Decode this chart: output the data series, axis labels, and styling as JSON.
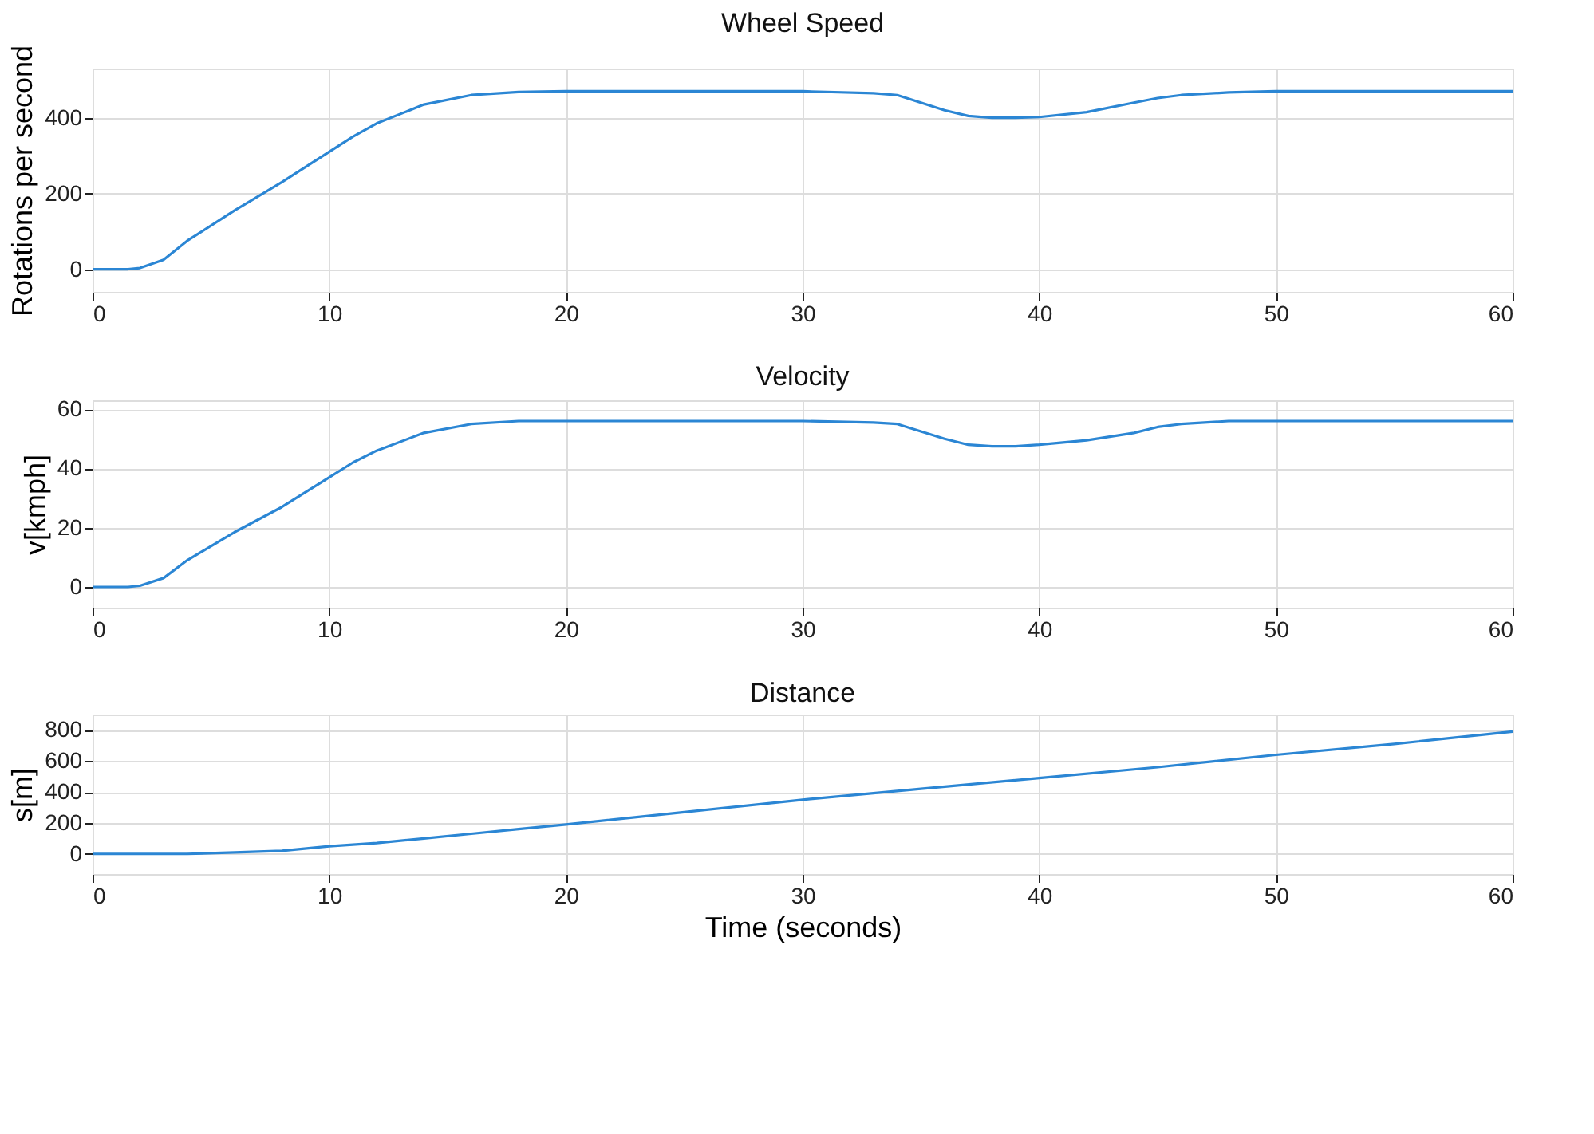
{
  "chart_data": [
    {
      "type": "line",
      "title": "Wheel Speed",
      "ylabel": "Rotations per second",
      "xlim": [
        0,
        60
      ],
      "xticks": [
        0,
        10,
        20,
        30,
        40,
        50,
        60
      ],
      "ylim": [
        -60,
        530
      ],
      "yticks": [
        0,
        200,
        400
      ],
      "grid": true,
      "series": [
        {
          "color": "#2b86d4",
          "x": [
            0,
            1.5,
            2,
            3,
            4,
            6,
            8,
            10,
            11,
            12,
            14,
            16,
            18,
            20,
            30,
            33,
            34,
            35,
            36,
            37,
            38,
            39,
            40,
            42,
            44,
            45,
            46,
            48,
            50,
            60
          ],
          "values": [
            0,
            0,
            3,
            25,
            75,
            155,
            230,
            310,
            350,
            385,
            435,
            460,
            468,
            470,
            470,
            465,
            460,
            440,
            420,
            405,
            400,
            400,
            402,
            415,
            440,
            452,
            460,
            467,
            470,
            470
          ]
        }
      ]
    },
    {
      "type": "line",
      "title": "Velocity",
      "ylabel": "v[kmph]",
      "xlim": [
        0,
        60
      ],
      "xticks": [
        0,
        10,
        20,
        30,
        40,
        50,
        60
      ],
      "ylim": [
        -7,
        63
      ],
      "yticks": [
        0,
        20,
        40,
        60
      ],
      "grid": true,
      "series": [
        {
          "color": "#2b86d4",
          "x": [
            0,
            1.5,
            2,
            3,
            4,
            6,
            8,
            10,
            11,
            12,
            14,
            16,
            18,
            20,
            30,
            33,
            34,
            35,
            36,
            37,
            38,
            39,
            40,
            42,
            44,
            45,
            46,
            48,
            50,
            60
          ],
          "values": [
            0,
            0,
            0.4,
            3,
            9,
            18.5,
            27,
            37,
            42,
            46,
            52,
            55,
            56,
            56,
            56,
            55.5,
            55,
            52.5,
            50,
            48,
            47.5,
            47.5,
            48,
            49.5,
            52,
            54,
            55,
            56,
            56,
            56
          ]
        }
      ]
    },
    {
      "type": "line",
      "title": "Distance",
      "xlabel": "Time (seconds)",
      "ylabel": "s[m]",
      "xlim": [
        0,
        60
      ],
      "xticks": [
        0,
        10,
        20,
        30,
        40,
        50,
        60
      ],
      "ylim": [
        -130,
        900
      ],
      "yticks": [
        0,
        200,
        400,
        600,
        800
      ],
      "grid": true,
      "series": [
        {
          "color": "#2b86d4",
          "x": [
            0,
            2,
            4,
            6,
            8,
            10,
            12,
            14,
            16,
            18,
            20,
            25,
            30,
            35,
            40,
            45,
            50,
            55,
            60
          ],
          "values": [
            0,
            0,
            0,
            10,
            20,
            50,
            70,
            100,
            130,
            160,
            190,
            270,
            350,
            420,
            490,
            560,
            640,
            710,
            790
          ]
        }
      ]
    }
  ]
}
